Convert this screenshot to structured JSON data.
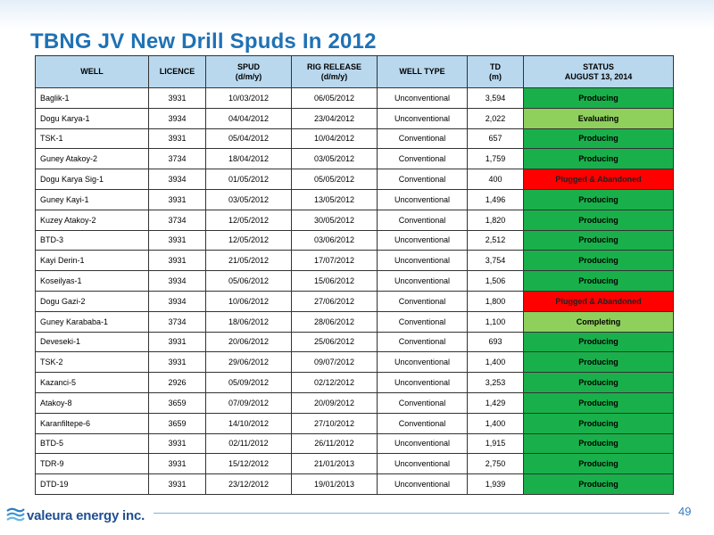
{
  "title": "TBNG JV New Drill Spuds In 2012",
  "table": {
    "headers": [
      {
        "line1": "WELL",
        "line2": ""
      },
      {
        "line1": "LICENCE",
        "line2": ""
      },
      {
        "line1": "SPUD",
        "line2": "(d/m/y)"
      },
      {
        "line1": "RIG RELEASE",
        "line2": "(d/m/y)"
      },
      {
        "line1": "WELL TYPE",
        "line2": ""
      },
      {
        "line1": "TD",
        "line2": "(m)"
      },
      {
        "line1": "STATUS",
        "line2": "AUGUST 13, 2014"
      }
    ],
    "rows": [
      {
        "well": "Baglik-1",
        "licence": "3931",
        "spud": "10/03/2012",
        "rig_release": "06/05/2012",
        "well_type": "Unconventional",
        "td": "3,594",
        "status": "Producing",
        "status_key": "producing"
      },
      {
        "well": "Dogu Karya-1",
        "licence": "3934",
        "spud": "04/04/2012",
        "rig_release": "23/04/2012",
        "well_type": "Unconventional",
        "td": "2,022",
        "status": "Evaluating",
        "status_key": "evaluating"
      },
      {
        "well": "TSK-1",
        "licence": "3931",
        "spud": "05/04/2012",
        "rig_release": "10/04/2012",
        "well_type": "Conventional",
        "td": "657",
        "status": "Producing",
        "status_key": "producing"
      },
      {
        "well": "Guney Atakoy-2",
        "licence": "3734",
        "spud": "18/04/2012",
        "rig_release": "03/05/2012",
        "well_type": "Conventional",
        "td": "1,759",
        "status": "Producing",
        "status_key": "producing"
      },
      {
        "well": "Dogu Karya Sig-1",
        "licence": "3934",
        "spud": "01/05/2012",
        "rig_release": "05/05/2012",
        "well_type": "Conventional",
        "td": "400",
        "status": "Plugged & Abandoned",
        "status_key": "plugged"
      },
      {
        "well": "Guney Kayi-1",
        "licence": "3931",
        "spud": "03/05/2012",
        "rig_release": "13/05/2012",
        "well_type": "Unconventional",
        "td": "1,496",
        "status": "Producing",
        "status_key": "producing"
      },
      {
        "well": "Kuzey Atakoy-2",
        "licence": "3734",
        "spud": "12/05/2012",
        "rig_release": "30/05/2012",
        "well_type": "Conventional",
        "td": "1,820",
        "status": "Producing",
        "status_key": "producing"
      },
      {
        "well": "BTD-3",
        "licence": "3931",
        "spud": "12/05/2012",
        "rig_release": "03/06/2012",
        "well_type": "Unconventional",
        "td": "2,512",
        "status": "Producing",
        "status_key": "producing"
      },
      {
        "well": "Kayi Derin-1",
        "licence": "3931",
        "spud": "21/05/2012",
        "rig_release": "17/07/2012",
        "well_type": "Unconventional",
        "td": "3,754",
        "status": "Producing",
        "status_key": "producing"
      },
      {
        "well": "Koseilyas-1",
        "licence": "3934",
        "spud": "05/06/2012",
        "rig_release": "15/06/2012",
        "well_type": "Unconventional",
        "td": "1,506",
        "status": "Producing",
        "status_key": "producing"
      },
      {
        "well": "Dogu Gazi-2",
        "licence": "3934",
        "spud": "10/06/2012",
        "rig_release": "27/06/2012",
        "well_type": "Conventional",
        "td": "1,800",
        "status": "Plugged & Abandoned",
        "status_key": "plugged"
      },
      {
        "well": "Guney Karababa-1",
        "licence": "3734",
        "spud": "18/06/2012",
        "rig_release": "28/06/2012",
        "well_type": "Conventional",
        "td": "1,100",
        "status": "Completing",
        "status_key": "completing"
      },
      {
        "well": "Deveseki-1",
        "licence": "3931",
        "spud": "20/06/2012",
        "rig_release": "25/06/2012",
        "well_type": "Conventional",
        "td": "693",
        "status": "Producing",
        "status_key": "producing"
      },
      {
        "well": "TSK-2",
        "licence": "3931",
        "spud": "29/06/2012",
        "rig_release": "09/07/2012",
        "well_type": "Unconventional",
        "td": "1,400",
        "status": "Producing",
        "status_key": "producing"
      },
      {
        "well": "Kazanci-5",
        "licence": "2926",
        "spud": "05/09/2012",
        "rig_release": "02/12/2012",
        "well_type": "Unconventional",
        "td": "3,253",
        "status": "Producing",
        "status_key": "producing"
      },
      {
        "well": "Atakoy-8",
        "licence": "3659",
        "spud": "07/09/2012",
        "rig_release": "20/09/2012",
        "well_type": "Conventional",
        "td": "1,429",
        "status": "Producing",
        "status_key": "producing"
      },
      {
        "well": "Karanfiltepe-6",
        "licence": "3659",
        "spud": "14/10/2012",
        "rig_release": "27/10/2012",
        "well_type": "Conventional",
        "td": "1,400",
        "status": "Producing",
        "status_key": "producing"
      },
      {
        "well": "BTD-5",
        "licence": "3931",
        "spud": "02/11/2012",
        "rig_release": "26/11/2012",
        "well_type": "Unconventional",
        "td": "1,915",
        "status": "Producing",
        "status_key": "producing"
      },
      {
        "well": "TDR-9",
        "licence": "3931",
        "spud": "15/12/2012",
        "rig_release": "21/01/2013",
        "well_type": "Unconventional",
        "td": "2,750",
        "status": "Producing",
        "status_key": "producing"
      },
      {
        "well": "DTD-19",
        "licence": "3931",
        "spud": "23/12/2012",
        "rig_release": "19/01/2013",
        "well_type": "Unconventional",
        "td": "1,939",
        "status": "Producing",
        "status_key": "producing"
      }
    ]
  },
  "status_colors": {
    "producing": "#19b04b",
    "evaluating": "#8fd05c",
    "completing": "#8fd05c",
    "plugged": "#ff0000"
  },
  "footer": {
    "logo_text": "valeura energy inc.",
    "logo_icon": "valeura-wave-icon",
    "page_number": "49"
  }
}
